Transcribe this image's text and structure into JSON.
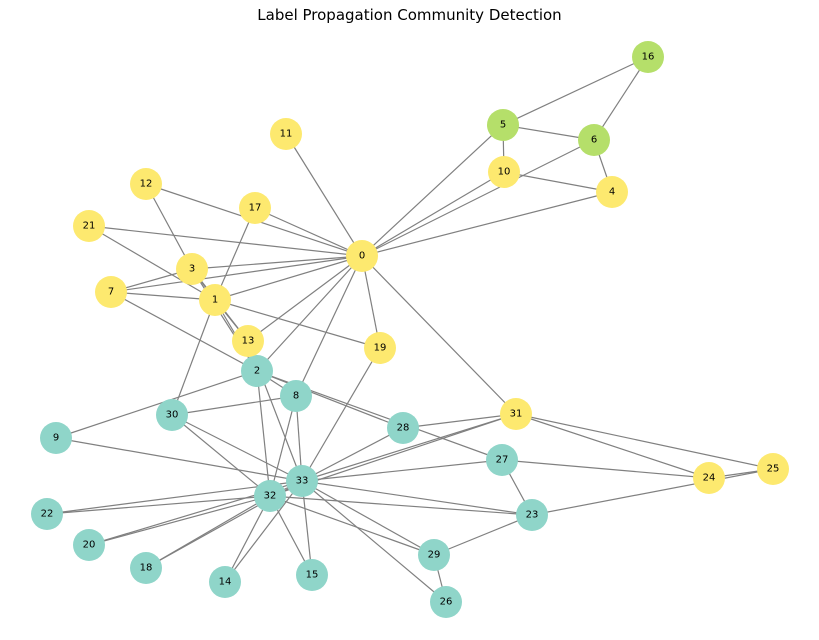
{
  "title": "Label Propagation Community Detection",
  "colors": {
    "edge": "#808080",
    "yellow_community": "#fde96f",
    "green_community": "#b5df6a",
    "teal_community": "#8fd5c9"
  },
  "nodes": [
    {
      "id": "0",
      "community": "yellow_community"
    },
    {
      "id": "1",
      "community": "yellow_community"
    },
    {
      "id": "2",
      "community": "teal_community"
    },
    {
      "id": "3",
      "community": "yellow_community"
    },
    {
      "id": "4",
      "community": "yellow_community"
    },
    {
      "id": "5",
      "community": "green_community"
    },
    {
      "id": "6",
      "community": "green_community"
    },
    {
      "id": "7",
      "community": "yellow_community"
    },
    {
      "id": "8",
      "community": "teal_community"
    },
    {
      "id": "9",
      "community": "teal_community"
    },
    {
      "id": "10",
      "community": "yellow_community"
    },
    {
      "id": "11",
      "community": "yellow_community"
    },
    {
      "id": "12",
      "community": "yellow_community"
    },
    {
      "id": "13",
      "community": "yellow_community"
    },
    {
      "id": "14",
      "community": "teal_community"
    },
    {
      "id": "15",
      "community": "teal_community"
    },
    {
      "id": "16",
      "community": "green_community"
    },
    {
      "id": "17",
      "community": "yellow_community"
    },
    {
      "id": "18",
      "community": "teal_community"
    },
    {
      "id": "19",
      "community": "yellow_community"
    },
    {
      "id": "20",
      "community": "teal_community"
    },
    {
      "id": "21",
      "community": "yellow_community"
    },
    {
      "id": "22",
      "community": "teal_community"
    },
    {
      "id": "23",
      "community": "teal_community"
    },
    {
      "id": "24",
      "community": "yellow_community"
    },
    {
      "id": "25",
      "community": "yellow_community"
    },
    {
      "id": "26",
      "community": "teal_community"
    },
    {
      "id": "27",
      "community": "teal_community"
    },
    {
      "id": "28",
      "community": "teal_community"
    },
    {
      "id": "29",
      "community": "teal_community"
    },
    {
      "id": "30",
      "community": "teal_community"
    },
    {
      "id": "31",
      "community": "yellow_community"
    },
    {
      "id": "32",
      "community": "teal_community"
    },
    {
      "id": "33",
      "community": "teal_community"
    }
  ],
  "edges": [
    [
      "0",
      "1"
    ],
    [
      "0",
      "2"
    ],
    [
      "0",
      "3"
    ],
    [
      "0",
      "4"
    ],
    [
      "0",
      "5"
    ],
    [
      "0",
      "6"
    ],
    [
      "0",
      "7"
    ],
    [
      "0",
      "8"
    ],
    [
      "0",
      "10"
    ],
    [
      "0",
      "11"
    ],
    [
      "0",
      "12"
    ],
    [
      "0",
      "13"
    ],
    [
      "0",
      "17"
    ],
    [
      "0",
      "19"
    ],
    [
      "0",
      "21"
    ],
    [
      "0",
      "31"
    ],
    [
      "1",
      "2"
    ],
    [
      "1",
      "3"
    ],
    [
      "1",
      "7"
    ],
    [
      "1",
      "13"
    ],
    [
      "1",
      "17"
    ],
    [
      "1",
      "19"
    ],
    [
      "1",
      "21"
    ],
    [
      "1",
      "30"
    ],
    [
      "2",
      "3"
    ],
    [
      "2",
      "7"
    ],
    [
      "2",
      "8"
    ],
    [
      "2",
      "9"
    ],
    [
      "2",
      "13"
    ],
    [
      "2",
      "27"
    ],
    [
      "2",
      "28"
    ],
    [
      "2",
      "32"
    ],
    [
      "3",
      "7"
    ],
    [
      "3",
      "12"
    ],
    [
      "3",
      "13"
    ],
    [
      "4",
      "6"
    ],
    [
      "4",
      "10"
    ],
    [
      "5",
      "6"
    ],
    [
      "5",
      "10"
    ],
    [
      "5",
      "16"
    ],
    [
      "6",
      "16"
    ],
    [
      "8",
      "30"
    ],
    [
      "8",
      "32"
    ],
    [
      "8",
      "33"
    ],
    [
      "9",
      "33"
    ],
    [
      "13",
      "33"
    ],
    [
      "14",
      "32"
    ],
    [
      "14",
      "33"
    ],
    [
      "15",
      "32"
    ],
    [
      "15",
      "33"
    ],
    [
      "18",
      "32"
    ],
    [
      "18",
      "33"
    ],
    [
      "19",
      "33"
    ],
    [
      "20",
      "32"
    ],
    [
      "20",
      "33"
    ],
    [
      "22",
      "32"
    ],
    [
      "22",
      "33"
    ],
    [
      "23",
      "25"
    ],
    [
      "23",
      "27"
    ],
    [
      "23",
      "29"
    ],
    [
      "23",
      "32"
    ],
    [
      "23",
      "33"
    ],
    [
      "24",
      "25"
    ],
    [
      "24",
      "27"
    ],
    [
      "24",
      "31"
    ],
    [
      "25",
      "31"
    ],
    [
      "26",
      "29"
    ],
    [
      "26",
      "33"
    ],
    [
      "27",
      "33"
    ],
    [
      "28",
      "31"
    ],
    [
      "28",
      "33"
    ],
    [
      "29",
      "32"
    ],
    [
      "29",
      "33"
    ],
    [
      "30",
      "32"
    ],
    [
      "30",
      "33"
    ],
    [
      "31",
      "32"
    ],
    [
      "31",
      "33"
    ],
    [
      "32",
      "33"
    ]
  ]
}
